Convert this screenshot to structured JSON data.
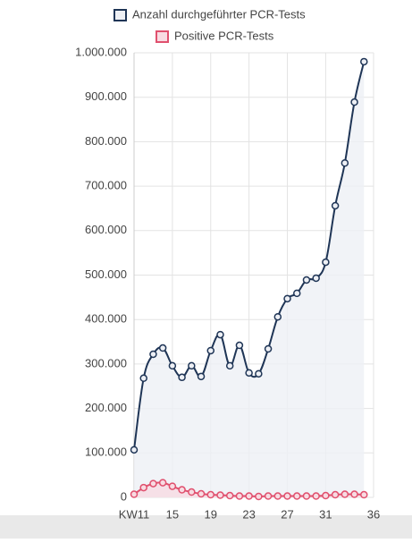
{
  "chart_data": {
    "type": "line",
    "x": [
      11,
      12,
      13,
      14,
      15,
      16,
      17,
      18,
      19,
      20,
      21,
      22,
      23,
      24,
      25,
      26,
      27,
      28,
      29,
      30,
      31,
      32,
      33,
      34,
      35
    ],
    "series": [
      {
        "name": "Anzahl durchgeführter PCR-Tests",
        "color": "#1f3556",
        "fill": "#eef0f5",
        "values": [
          107000,
          268000,
          322000,
          336000,
          296000,
          270000,
          296000,
          272000,
          330000,
          366000,
          296000,
          342000,
          280000,
          278000,
          334000,
          406000,
          447000,
          459000,
          489000,
          493000,
          529000,
          656000,
          752000,
          889000,
          980000
        ]
      },
      {
        "name": "Positive PCR-Tests",
        "color": "#e0506e",
        "fill": "#f8dbe2",
        "values": [
          7000,
          22000,
          31000,
          33000,
          25000,
          17000,
          12000,
          8000,
          6000,
          5000,
          4000,
          3000,
          3000,
          2000,
          3000,
          3000,
          3000,
          3000,
          3000,
          3000,
          4000,
          6000,
          7000,
          7000,
          6000
        ]
      }
    ],
    "xlim": [
      11,
      36
    ],
    "xticks": [
      {
        "value": 11,
        "label": "KW11"
      },
      15,
      19,
      23,
      27,
      31,
      36
    ],
    "ylim": [
      0,
      1000000
    ],
    "yticks": [
      0,
      {
        "value": 100000,
        "label": "100.000"
      },
      {
        "value": 200000,
        "label": "200.000"
      },
      {
        "value": 300000,
        "label": "300.000"
      },
      {
        "value": 400000,
        "label": "400.000"
      },
      {
        "value": 500000,
        "label": "500.000"
      },
      {
        "value": 600000,
        "label": "600.000"
      },
      {
        "value": 700000,
        "label": "700.000"
      },
      {
        "value": 800000,
        "label": "800.000"
      },
      {
        "value": 900000,
        "label": "900.000"
      },
      {
        "value": 1000000,
        "label": "1.000.000"
      }
    ],
    "grid": true
  }
}
